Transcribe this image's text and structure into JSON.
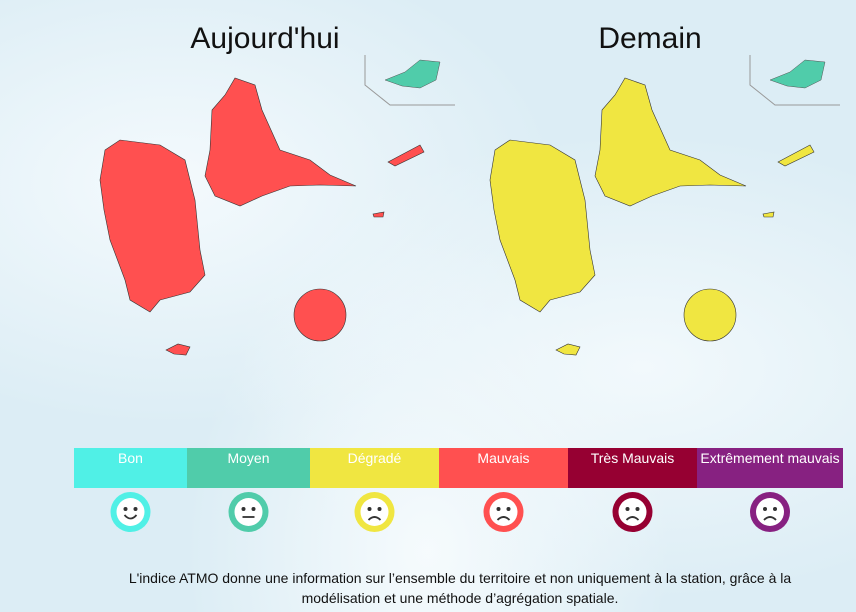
{
  "titles": {
    "today": "Aujourd'hui",
    "tomorrow": "Demain"
  },
  "legend": [
    {
      "label": "Bon",
      "color": "#50f0e6"
    },
    {
      "label": "Moyen",
      "color": "#50ccaa"
    },
    {
      "label": "Dégradé",
      "color": "#f0e641"
    },
    {
      "label": "Mauvais",
      "color": "#ff5050"
    },
    {
      "label": "Très Mauvais",
      "color": "#960032"
    },
    {
      "label": "Extrêmement mauvais",
      "color": "#872181"
    }
  ],
  "footnote": "L'indice ATMO donne une information sur l’ensemble du territoire et non uniquement à la station, grâce à la modélisation et une méthode d’agrégation spatiale."
}
